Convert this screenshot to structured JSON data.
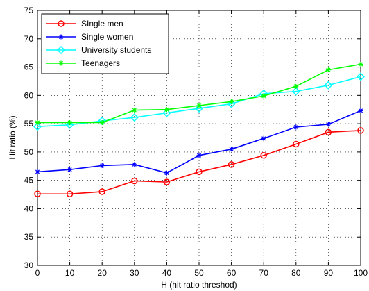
{
  "chart_data": {
    "type": "line",
    "title": "",
    "xlabel": "H (hit ratio threshod)",
    "ylabel": "Hit ratio (%)",
    "x": [
      0,
      10,
      20,
      30,
      40,
      50,
      60,
      70,
      80,
      90,
      100
    ],
    "xlim": [
      0,
      100
    ],
    "ylim": [
      30,
      75
    ],
    "xticks": [
      0,
      10,
      20,
      30,
      40,
      50,
      60,
      70,
      80,
      90,
      100
    ],
    "yticks": [
      30,
      35,
      40,
      45,
      50,
      55,
      60,
      65,
      70,
      75
    ],
    "grid": true,
    "grid_style": "dotted",
    "legend_position": "top-left",
    "series": [
      {
        "name": "SIngle men",
        "color": "#ff0000",
        "marker": "circle",
        "values": [
          42.6,
          42.6,
          43.0,
          44.9,
          44.7,
          46.5,
          47.8,
          49.4,
          51.4,
          53.5,
          53.8
        ]
      },
      {
        "name": "Single women",
        "color": "#0000ff",
        "marker": "star",
        "values": [
          46.5,
          46.9,
          47.6,
          47.8,
          46.3,
          49.4,
          50.5,
          52.4,
          54.4,
          54.9,
          57.3
        ]
      },
      {
        "name": "University students",
        "color": "#00ffff",
        "marker": "diamond",
        "values": [
          54.5,
          54.8,
          55.5,
          56.1,
          56.9,
          57.7,
          58.5,
          60.3,
          60.7,
          61.8,
          63.3
        ]
      },
      {
        "name": "Teenagers",
        "color": "#00ff00",
        "marker": "star",
        "values": [
          55.2,
          55.2,
          55.2,
          57.4,
          57.5,
          58.2,
          58.9,
          59.9,
          61.6,
          64.5,
          65.5
        ]
      }
    ]
  }
}
